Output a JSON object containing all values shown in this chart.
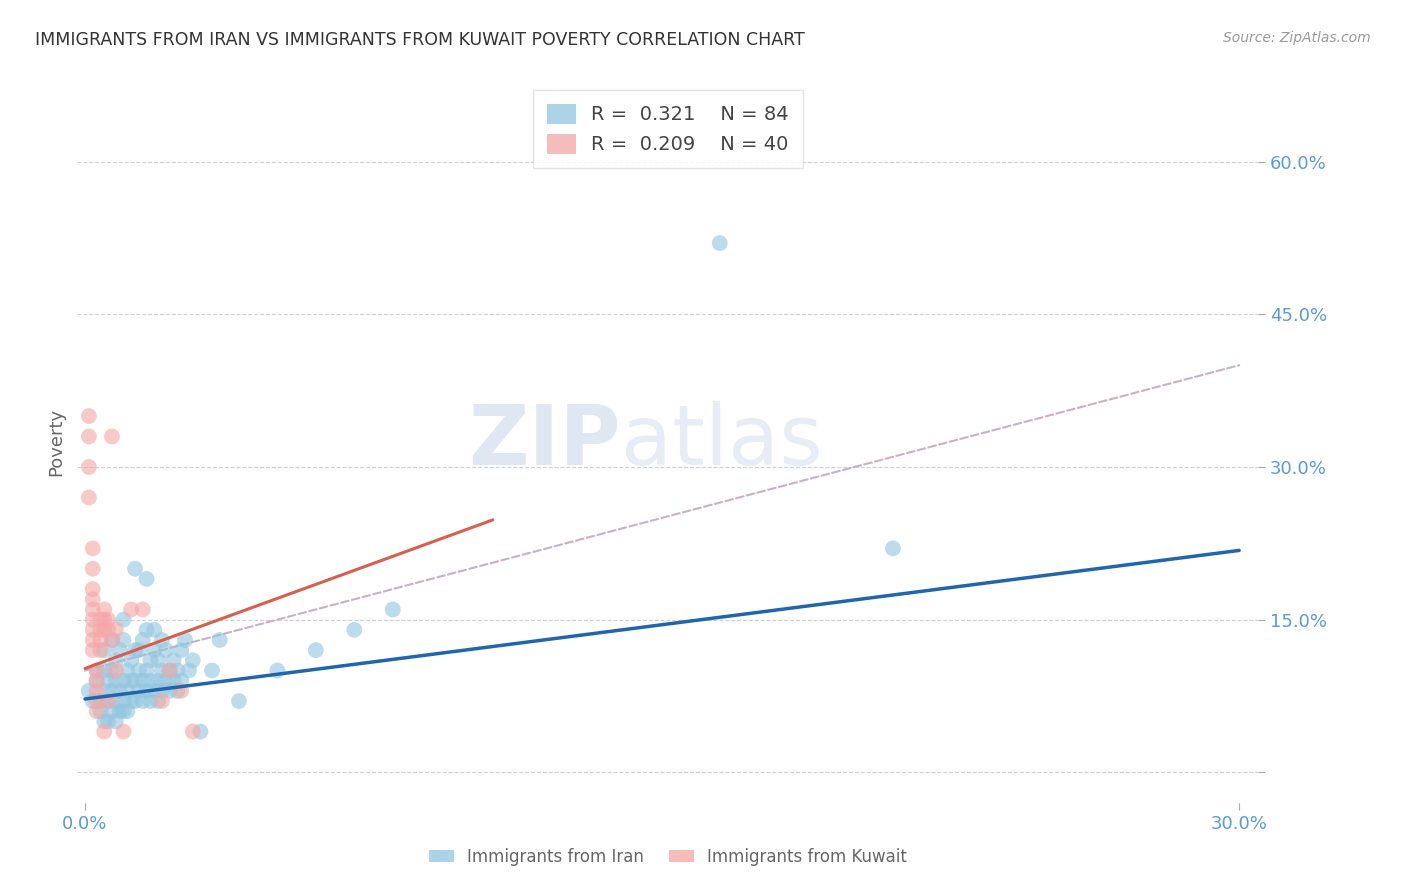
{
  "title": "IMMIGRANTS FROM IRAN VS IMMIGRANTS FROM KUWAIT POVERTY CORRELATION CHART",
  "source": "Source: ZipAtlas.com",
  "ylabel": "Poverty",
  "xlim": [
    -0.002,
    0.305
  ],
  "ylim": [
    -0.03,
    0.68
  ],
  "yticks": [
    0.0,
    0.15,
    0.3,
    0.45,
    0.6
  ],
  "ytick_labels_right": [
    "",
    "15.0%",
    "30.0%",
    "45.0%",
    "60.0%"
  ],
  "xticks": [
    0.0,
    0.3
  ],
  "xtick_labels": [
    "0.0%",
    "30.0%"
  ],
  "iran_R": "0.321",
  "iran_N": "84",
  "kuwait_R": "0.209",
  "kuwait_N": "40",
  "iran_color": "#92c5de",
  "kuwait_color": "#f4a6a6",
  "iran_line_color": "#2166ac",
  "kuwait_line_color": "#d6604d",
  "dashed_line_color": "#c9b0c8",
  "legend_label_iran": "Immigrants from Iran",
  "legend_label_kuwait": "Immigrants from Kuwait",
  "watermark_zip": "ZIP",
  "watermark_atlas": "atlas",
  "background_color": "#ffffff",
  "grid_color": "#d0d0d0",
  "axis_label_color": "#5b9bd5",
  "title_color": "#333333",
  "iran_trend_x": [
    0.0,
    0.3
  ],
  "iran_trend_y": [
    0.072,
    0.218
  ],
  "kuwait_trend_x": [
    0.0,
    0.106
  ],
  "kuwait_trend_y": [
    0.102,
    0.248
  ],
  "dashed_trend_x": [
    0.0,
    0.3
  ],
  "dashed_trend_y": [
    0.1,
    0.4
  ],
  "iran_scatter_x": [
    0.001,
    0.002,
    0.003,
    0.003,
    0.004,
    0.004,
    0.005,
    0.005,
    0.005,
    0.005,
    0.006,
    0.006,
    0.006,
    0.007,
    0.007,
    0.007,
    0.007,
    0.008,
    0.008,
    0.008,
    0.008,
    0.009,
    0.009,
    0.009,
    0.01,
    0.01,
    0.01,
    0.01,
    0.01,
    0.011,
    0.011,
    0.011,
    0.012,
    0.012,
    0.012,
    0.013,
    0.013,
    0.013,
    0.013,
    0.014,
    0.014,
    0.014,
    0.015,
    0.015,
    0.015,
    0.016,
    0.016,
    0.016,
    0.016,
    0.017,
    0.017,
    0.017,
    0.018,
    0.018,
    0.018,
    0.019,
    0.019,
    0.019,
    0.02,
    0.02,
    0.02,
    0.021,
    0.021,
    0.022,
    0.022,
    0.023,
    0.023,
    0.024,
    0.024,
    0.025,
    0.025,
    0.026,
    0.027,
    0.028,
    0.03,
    0.033,
    0.035,
    0.04,
    0.05,
    0.06,
    0.07,
    0.08,
    0.165,
    0.21
  ],
  "iran_scatter_y": [
    0.08,
    0.07,
    0.09,
    0.1,
    0.06,
    0.07,
    0.05,
    0.08,
    0.1,
    0.12,
    0.05,
    0.07,
    0.09,
    0.06,
    0.08,
    0.1,
    0.13,
    0.05,
    0.07,
    0.09,
    0.11,
    0.06,
    0.08,
    0.12,
    0.06,
    0.07,
    0.09,
    0.13,
    0.15,
    0.06,
    0.08,
    0.1,
    0.07,
    0.09,
    0.11,
    0.07,
    0.09,
    0.12,
    0.2,
    0.08,
    0.1,
    0.12,
    0.07,
    0.09,
    0.13,
    0.08,
    0.1,
    0.14,
    0.19,
    0.07,
    0.09,
    0.11,
    0.08,
    0.12,
    0.14,
    0.07,
    0.09,
    0.11,
    0.08,
    0.1,
    0.13,
    0.09,
    0.12,
    0.08,
    0.1,
    0.09,
    0.11,
    0.08,
    0.1,
    0.09,
    0.12,
    0.13,
    0.1,
    0.11,
    0.04,
    0.1,
    0.13,
    0.07,
    0.1,
    0.12,
    0.14,
    0.16,
    0.52,
    0.22
  ],
  "kuwait_scatter_x": [
    0.001,
    0.001,
    0.001,
    0.001,
    0.002,
    0.002,
    0.002,
    0.002,
    0.002,
    0.002,
    0.002,
    0.002,
    0.002,
    0.003,
    0.003,
    0.003,
    0.003,
    0.003,
    0.004,
    0.004,
    0.004,
    0.004,
    0.005,
    0.005,
    0.005,
    0.005,
    0.006,
    0.006,
    0.006,
    0.007,
    0.007,
    0.008,
    0.008,
    0.01,
    0.012,
    0.015,
    0.02,
    0.022,
    0.025,
    0.028
  ],
  "kuwait_scatter_y": [
    0.35,
    0.33,
    0.3,
    0.27,
    0.22,
    0.2,
    0.18,
    0.17,
    0.16,
    0.15,
    0.14,
    0.13,
    0.12,
    0.1,
    0.09,
    0.08,
    0.07,
    0.06,
    0.15,
    0.14,
    0.13,
    0.12,
    0.16,
    0.15,
    0.14,
    0.04,
    0.15,
    0.14,
    0.07,
    0.33,
    0.13,
    0.14,
    0.1,
    0.04,
    0.16,
    0.16,
    0.07,
    0.1,
    0.08,
    0.04
  ]
}
